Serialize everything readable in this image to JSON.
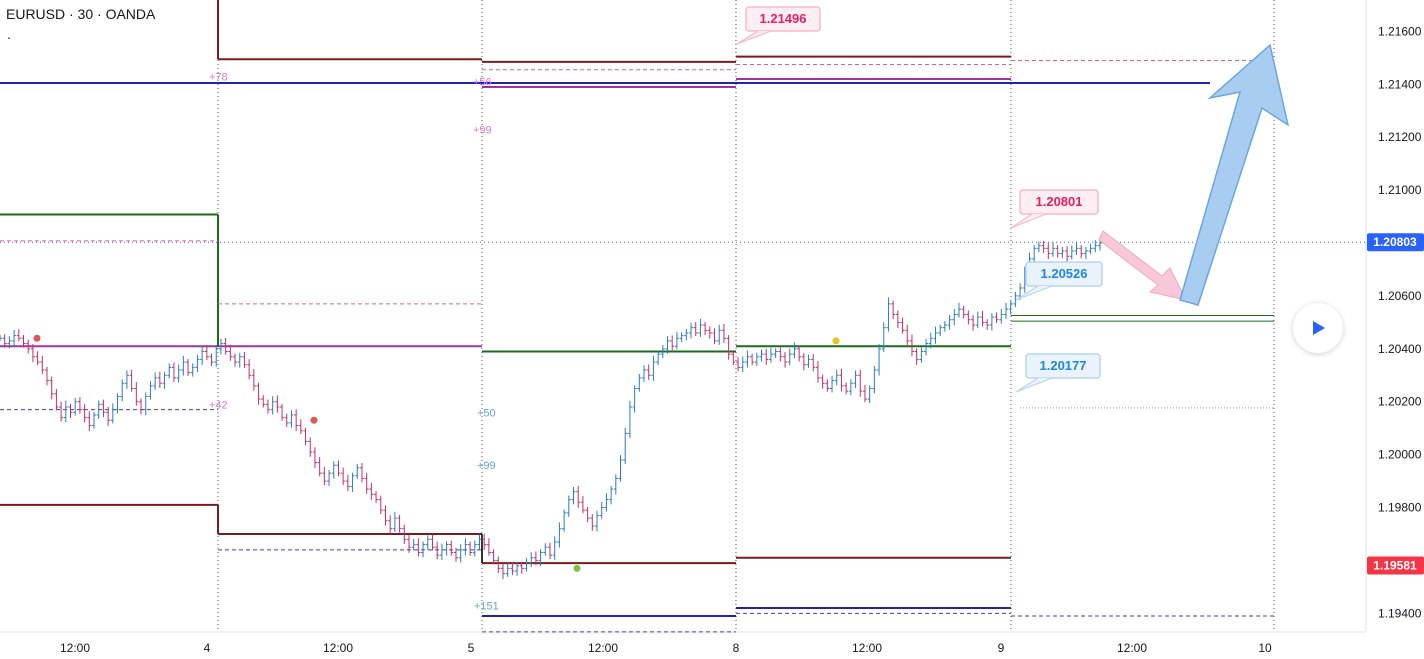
{
  "header": {
    "symbol": "EURUSD · 30 · OANDA",
    "dot": "."
  },
  "controls": {
    "play_icon": "play-icon"
  },
  "chart_data": {
    "type": "candlestick",
    "symbol": "EURUSD",
    "interval": "30",
    "source": "OANDA",
    "y_range": [
      1.1925,
      1.217
    ],
    "y_ticks": [
      "1.21600",
      "1.21400",
      "1.21200",
      "1.21000",
      "1.20600",
      "1.20400",
      "1.20200",
      "1.20000",
      "1.19800",
      "1.19400"
    ],
    "x_ticks": [
      "12:00",
      "4",
      "12:00",
      "5",
      "12:00",
      "8",
      "12:00",
      "9",
      "12:00",
      "10"
    ],
    "price_badges": [
      {
        "label": "1.20803",
        "value": 1.20803,
        "color": "#2962ff"
      },
      {
        "label": "1.19581",
        "value": 1.19581,
        "color": "#f23645"
      }
    ],
    "callouts": [
      {
        "label": "1.21496",
        "value": 1.21496,
        "color": "#e91e63"
      },
      {
        "label": "1.20801",
        "value": 1.20801,
        "color": "#e91e63"
      },
      {
        "label": "1.20526",
        "value": 1.20526,
        "color": "#1e88e5"
      },
      {
        "label": "1.20177",
        "value": 1.20177,
        "color": "#1e88e5"
      }
    ],
    "level_labels": [
      {
        "label": "+78",
        "value": 1.2143,
        "color": "#d57ad5"
      },
      {
        "label": "+56",
        "value": 1.2141,
        "color": "#d57ad5"
      },
      {
        "label": "+99",
        "value": 1.2123,
        "color": "#d57ad5"
      },
      {
        "label": "+42",
        "value": 1.2019,
        "color": "#d57ad5"
      },
      {
        "label": "+50",
        "value": 1.2016,
        "color": "#64a0dc"
      },
      {
        "label": "+99",
        "value": 1.1996,
        "color": "#64a0dc"
      },
      {
        "label": "+151",
        "value": 1.1943,
        "color": "#64a0dc"
      }
    ],
    "levels": [
      {
        "start": "3",
        "end": "4",
        "value": 1.20908,
        "color": "#1b6b1b"
      },
      {
        "start": "3",
        "end": "4",
        "value": 1.2041,
        "color": "#a033a0"
      },
      {
        "start": "3",
        "end": "4",
        "value": 1.1981,
        "color": "#7a1c1c"
      },
      {
        "start": "4",
        "end": "5",
        "value": 1.21495,
        "color": "#7a1c1c"
      },
      {
        "start": "4",
        "end": "5",
        "value": 1.2041,
        "color": "#a033a0"
      },
      {
        "start": "4",
        "end": "5",
        "value": 1.197,
        "color": "#7a1c1c"
      },
      {
        "start": "5",
        "end": "8",
        "value": 1.21485,
        "color": "#7a1c1c"
      },
      {
        "start": "5",
        "end": "8",
        "value": 1.2139,
        "color": "#a033a0"
      },
      {
        "start": "5",
        "end": "8",
        "value": 1.2039,
        "color": "#1b6b1b"
      },
      {
        "start": "5",
        "end": "8",
        "value": 1.1959,
        "color": "#7a1c1c"
      },
      {
        "start": "5",
        "end": "8",
        "value": 1.1939,
        "color": "#2121b3"
      },
      {
        "start": "8",
        "end": "9",
        "value": 1.21505,
        "color": "#7a1c1c"
      },
      {
        "start": "8",
        "end": "9",
        "value": 1.2142,
        "color": "#a033a0"
      },
      {
        "start": "8",
        "end": "9",
        "value": 1.2041,
        "color": "#1b6b1b"
      },
      {
        "start": "8",
        "end": "9",
        "value": 1.1961,
        "color": "#7a1c1c"
      },
      {
        "start": "8",
        "end": "9",
        "value": 1.1942,
        "color": "#2121b3"
      },
      {
        "start": "3",
        "end": "10",
        "value": 1.21405,
        "color": "#2121b3"
      }
    ],
    "candles_close": [
      1.2044,
      1.2042,
      1.2043,
      1.2045,
      1.2044,
      1.2042,
      1.204,
      1.2037,
      1.2035,
      1.2032,
      1.2028,
      1.2023,
      1.2018,
      1.2014,
      1.2018,
      1.2016,
      1.202,
      1.2017,
      1.2014,
      1.2011,
      1.2015,
      1.2019,
      1.2016,
      1.2013,
      1.2017,
      1.2022,
      1.2027,
      1.203,
      1.2025,
      1.202,
      1.2017,
      1.2022,
      1.2026,
      1.2029,
      1.2027,
      1.203,
      1.2033,
      1.2029,
      1.2032,
      1.2035,
      1.2031,
      1.2033,
      1.2036,
      1.2039,
      1.2037,
      1.2035,
      1.204,
      1.2042,
      1.2039,
      1.2037,
      1.2035,
      1.2037,
      1.2034,
      1.203,
      1.2026,
      1.2021,
      1.2019,
      1.2017,
      1.202,
      1.2018,
      1.2014,
      1.2012,
      1.2015,
      1.2011,
      1.2009,
      1.2005,
      1.2001,
      1.1997,
      1.1993,
      1.199,
      1.1993,
      1.1996,
      1.1993,
      1.199,
      1.1988,
      1.1992,
      1.1995,
      1.1991,
      1.1987,
      1.1985,
      1.1983,
      1.1979,
      1.1975,
      1.1972,
      1.1976,
      1.1972,
      1.1968,
      1.1965,
      1.1966,
      1.1963,
      1.1966,
      1.1968,
      1.1965,
      1.1962,
      1.1964,
      1.1966,
      1.1963,
      1.1961,
      1.1964,
      1.1966,
      1.1963,
      1.1966,
      1.1968,
      1.1966,
      1.1963,
      1.196,
      1.1957,
      1.1955,
      1.1957,
      1.1956,
      1.1958,
      1.1957,
      1.1959,
      1.1961,
      1.196,
      1.1963,
      1.1965,
      1.1962,
      1.1967,
      1.1972,
      1.1978,
      1.1983,
      1.1986,
      1.1982,
      1.1979,
      1.1976,
      1.1973,
      1.1977,
      1.198,
      1.1983,
      1.1987,
      1.1991,
      1.1998,
      1.2008,
      1.2018,
      1.2025,
      1.2029,
      1.2032,
      1.203,
      1.2035,
      1.2038,
      1.204,
      1.2043,
      1.2041,
      1.2044,
      1.2045,
      1.2046,
      1.2048,
      1.2046,
      1.2049,
      1.2047,
      1.2046,
      1.2043,
      1.2047,
      1.2044,
      1.2038,
      1.2035,
      1.2033,
      1.2035,
      1.2037,
      1.2035,
      1.2037,
      1.2038,
      1.2036,
      1.2038,
      1.2039,
      1.2037,
      1.2035,
      1.2038,
      1.204,
      1.2037,
      1.2034,
      1.2036,
      1.2033,
      1.2029,
      1.2027,
      1.2025,
      1.2028,
      1.203,
      1.2026,
      1.2024,
      1.2027,
      1.203,
      1.2024,
      1.2021,
      1.2025,
      1.2032,
      1.204,
      1.2048,
      1.2057,
      1.2053,
      1.205,
      1.2047,
      1.2043,
      1.2039,
      1.2036,
      1.2039,
      1.2042,
      1.2044,
      1.2046,
      1.2048,
      1.2049,
      1.2051,
      1.2053,
      1.2055,
      1.2053,
      1.2051,
      1.2049,
      1.2052,
      1.205,
      1.2049,
      1.2052,
      1.2051,
      1.2053,
      1.2055,
      1.2057,
      1.206,
      1.2063,
      1.2069,
      1.2074,
      1.2078,
      1.2079,
      1.2078,
      1.2076,
      1.2078,
      1.2076,
      1.2077,
      1.2075,
      1.2077,
      1.2078,
      1.2076,
      1.2077,
      1.2078,
      1.2079,
      1.208
    ]
  }
}
